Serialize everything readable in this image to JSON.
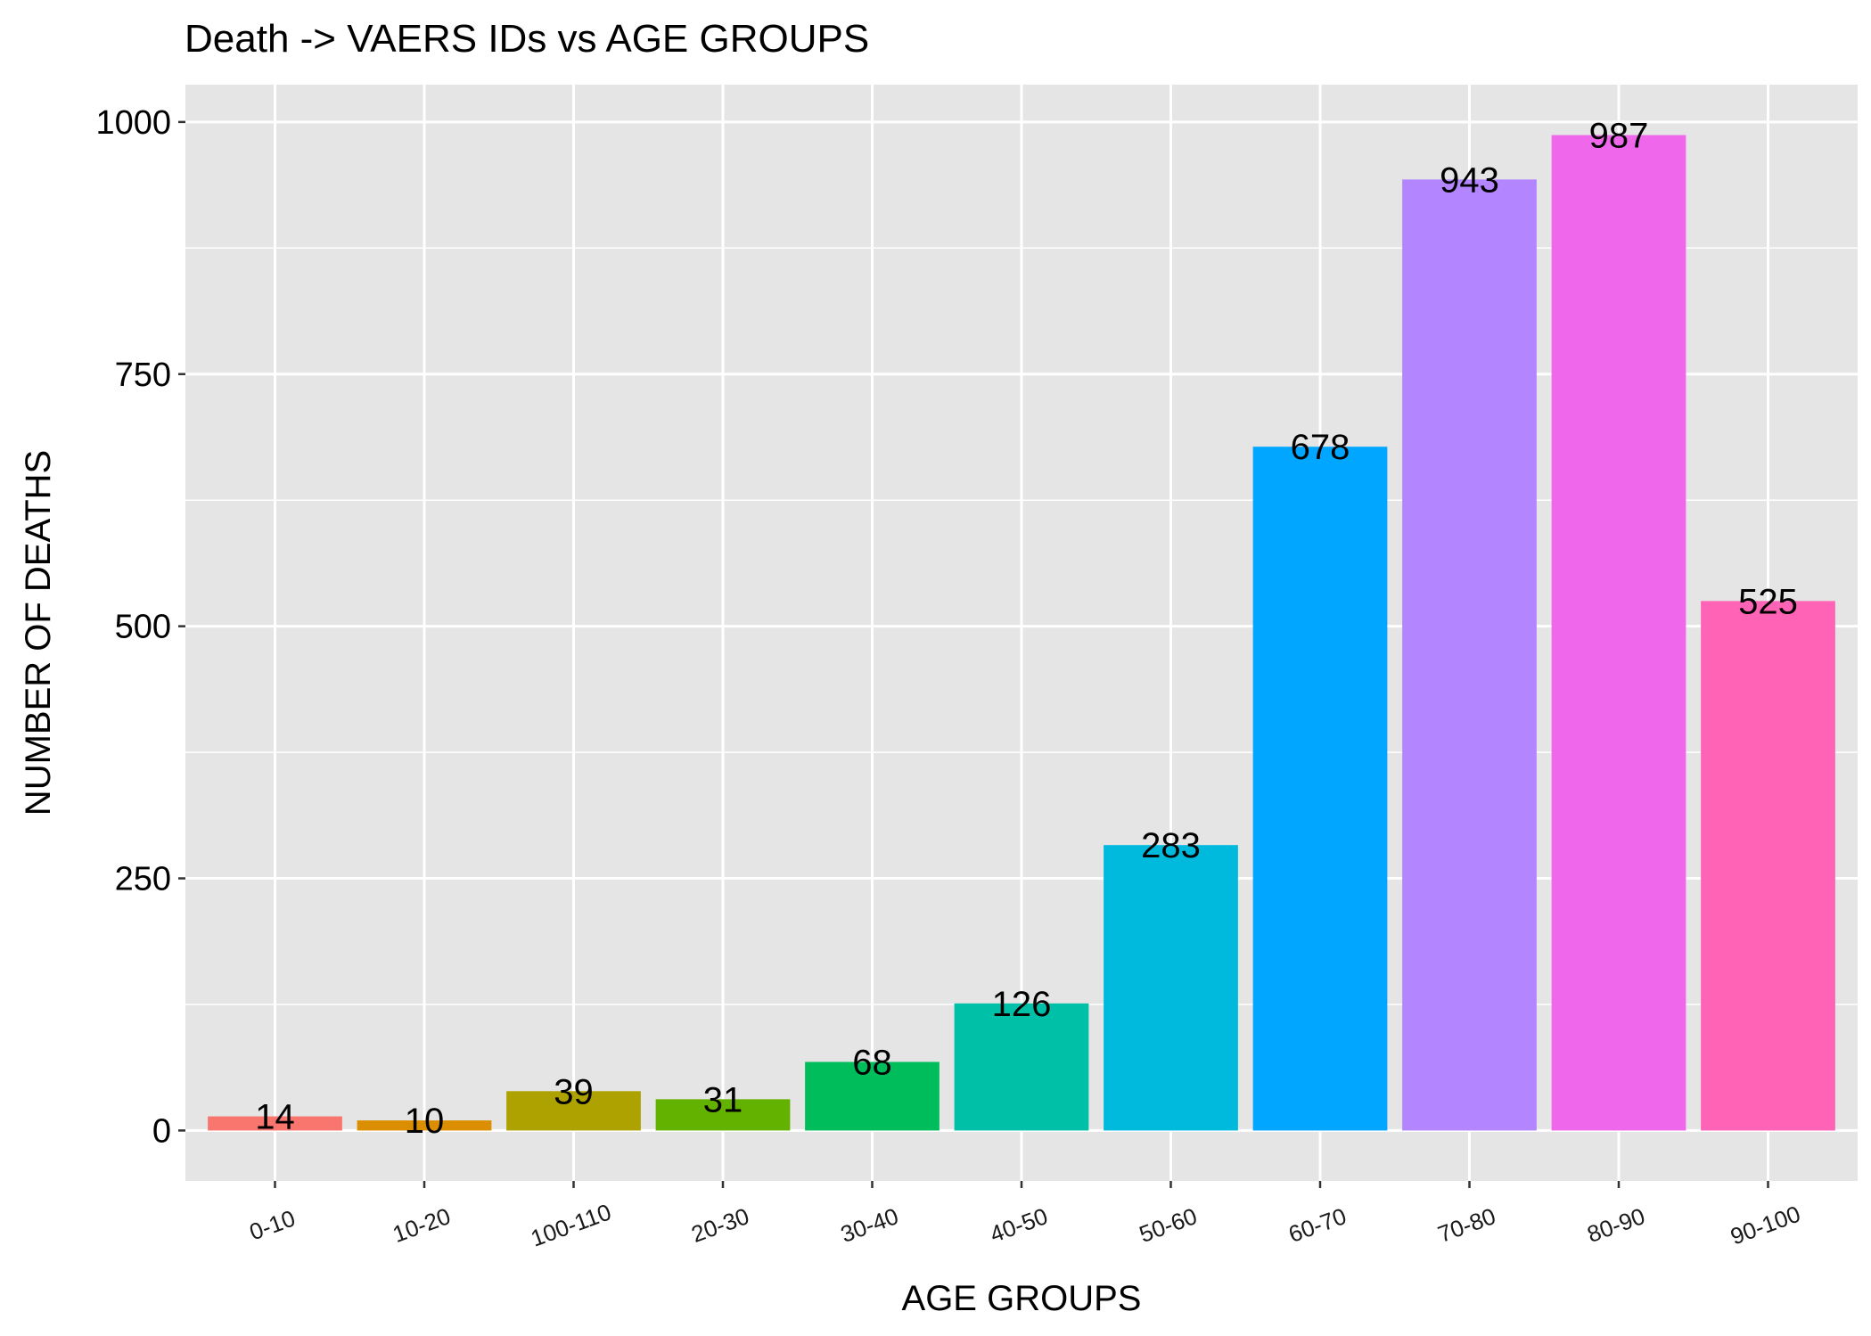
{
  "chart_data": {
    "type": "bar",
    "title": "Death -> VAERS IDs vs AGE GROUPS",
    "xlabel": "AGE GROUPS",
    "ylabel": "NUMBER OF DEATHS",
    "categories": [
      "0-10",
      "10-20",
      "100-110",
      "20-30",
      "30-40",
      "40-50",
      "50-60",
      "60-70",
      "70-80",
      "80-90",
      "90-100"
    ],
    "values": [
      14,
      10,
      39,
      31,
      68,
      126,
      283,
      678,
      943,
      987,
      525
    ],
    "colors": [
      "#F8766D",
      "#DB8E00",
      "#AEA200",
      "#64B200",
      "#00BD5C",
      "#00C1A7",
      "#00BADE",
      "#00A6FF",
      "#B385FF",
      "#EF67EB",
      "#FF63B6"
    ],
    "ylim": [
      -50,
      1037
    ],
    "yticks": [
      0,
      250,
      500,
      750,
      1000
    ],
    "panel_background": "#E5E5E5",
    "grid": true
  }
}
